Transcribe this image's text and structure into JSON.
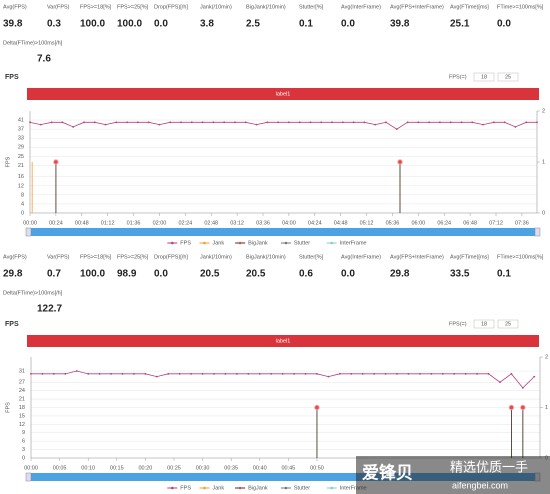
{
  "panels": [
    {
      "stats": [
        {
          "label": "Avg(FPS)",
          "value": "39.8"
        },
        {
          "label": "Var(FPS)",
          "value": "0.3"
        },
        {
          "label": "FPS>=18[%]",
          "value": "100.0"
        },
        {
          "label": "FPS>=25[%]",
          "value": "100.0"
        },
        {
          "label": "Drop(FPS)[/h]",
          "value": "0.0"
        },
        {
          "label": "Jank(/10min)",
          "value": "3.8"
        },
        {
          "label": "BigJank(/10min)",
          "value": "2.5"
        },
        {
          "label": "Stutter[%]",
          "value": "0.1"
        },
        {
          "label": "Avg(InterFrame)",
          "value": "0.0"
        },
        {
          "label": "Avg(FPS+InterFrame)",
          "value": "39.8"
        },
        {
          "label": "Avg(FTime)[ms]",
          "value": "25.1"
        },
        {
          "label": "FTime>=100ms[%]",
          "value": "0.0"
        }
      ],
      "delta": {
        "label": "Delta(FTime)>100ms[/h]",
        "value": "7.6"
      }
    },
    {
      "stats": [
        {
          "label": "Avg(FPS)",
          "value": "29.8"
        },
        {
          "label": "Var(FPS)",
          "value": "0.7"
        },
        {
          "label": "FPS>=18[%]",
          "value": "100.0"
        },
        {
          "label": "FPS>=25[%]",
          "value": "98.9"
        },
        {
          "label": "Drop(FPS)[/h]",
          "value": "0.0"
        },
        {
          "label": "Jank(/10min)",
          "value": "20.5"
        },
        {
          "label": "BigJank(/10min)",
          "value": "20.5"
        },
        {
          "label": "Stutter[%]",
          "value": "0.6"
        },
        {
          "label": "Avg(InterFrame)",
          "value": "0.0"
        },
        {
          "label": "Avg(FPS+InterFrame)",
          "value": "29.8"
        },
        {
          "label": "Avg(FTime)[ms]",
          "value": "33.5"
        },
        {
          "label": "FTime>=100ms[%]",
          "value": "0.1"
        }
      ],
      "delta": {
        "label": "Delta(FTime)>100ms[/h]",
        "value": "122.7"
      }
    }
  ],
  "chart_data": [
    {
      "type": "line",
      "title": "FPS",
      "ylabel": "FPS",
      "threshold_label": "FPS(=)",
      "thresholds": [
        18,
        25
      ],
      "band_label": "label1",
      "grid": true,
      "legend": "bottom",
      "xlim": [
        0,
        470
      ],
      "xticks": [
        {
          "value": 0,
          "label": "00:00"
        },
        {
          "value": 24,
          "label": "00:24"
        },
        {
          "value": 48,
          "label": "00:48"
        },
        {
          "value": 72,
          "label": "01:12"
        },
        {
          "value": 96,
          "label": "01:36"
        },
        {
          "value": 120,
          "label": "02:00"
        },
        {
          "value": 144,
          "label": "02:24"
        },
        {
          "value": 168,
          "label": "02:48"
        },
        {
          "value": 192,
          "label": "03:12"
        },
        {
          "value": 216,
          "label": "03:36"
        },
        {
          "value": 240,
          "label": "04:00"
        },
        {
          "value": 264,
          "label": "04:24"
        },
        {
          "value": 288,
          "label": "04:48"
        },
        {
          "value": 312,
          "label": "05:12"
        },
        {
          "value": 336,
          "label": "05:36"
        },
        {
          "value": 360,
          "label": "06:00"
        },
        {
          "value": 384,
          "label": "06:24"
        },
        {
          "value": 408,
          "label": "06:48"
        },
        {
          "value": 432,
          "label": "07:12"
        },
        {
          "value": 456,
          "label": "07:36"
        }
      ],
      "ylim": [
        0,
        45
      ],
      "yticks": [
        0,
        4,
        8,
        12,
        16,
        21,
        25,
        29,
        33,
        37,
        41
      ],
      "y2lim": [
        0,
        2
      ],
      "y2ticks": [
        0,
        1,
        2
      ],
      "series": [
        {
          "name": "FPS",
          "color": "#b8417a",
          "x": [
            0,
            10,
            20,
            30,
            40,
            50,
            60,
            70,
            80,
            90,
            100,
            110,
            120,
            130,
            140,
            150,
            160,
            170,
            180,
            190,
            200,
            210,
            220,
            230,
            240,
            250,
            260,
            270,
            280,
            290,
            300,
            310,
            320,
            330,
            340,
            350,
            360,
            370,
            380,
            390,
            400,
            410,
            420,
            430,
            440,
            450,
            460,
            470
          ],
          "values": [
            40,
            39,
            40,
            40,
            38,
            40,
            40,
            39,
            40,
            40,
            40,
            40,
            39,
            40,
            40,
            40,
            40,
            40,
            40,
            40,
            40,
            39,
            40,
            40,
            40,
            40,
            40,
            40,
            40,
            40,
            40,
            40,
            39,
            40,
            37,
            40,
            40,
            40,
            40,
            40,
            40,
            40,
            39,
            40,
            40,
            38,
            40,
            40
          ]
        },
        {
          "name": "Jank",
          "color": "#f0a030",
          "axis": "y2",
          "x": [
            2,
            24,
            343
          ],
          "values": [
            1,
            1,
            1
          ]
        },
        {
          "name": "BigJank",
          "color": "#333333",
          "marker": "#e8474c",
          "axis": "y2",
          "x": [
            24,
            343
          ],
          "values": [
            1,
            1
          ]
        },
        {
          "name": "Stutter",
          "color": "#777777",
          "axis": "y2",
          "x": [],
          "values": []
        },
        {
          "name": "InterFrame",
          "color": "#7fd0c0",
          "axis": "y2",
          "x": [],
          "values": []
        }
      ]
    },
    {
      "type": "line",
      "title": "FPS",
      "ylabel": "FPS",
      "threshold_label": "FPS(=)",
      "thresholds": [
        18,
        25
      ],
      "band_label": "label1",
      "grid": true,
      "legend": "bottom",
      "xlim": [
        0,
        89
      ],
      "xticks": [
        {
          "value": 0,
          "label": "00:00"
        },
        {
          "value": 5,
          "label": "00:05"
        },
        {
          "value": 10,
          "label": "00:10"
        },
        {
          "value": 15,
          "label": "00:15"
        },
        {
          "value": 20,
          "label": "00:20"
        },
        {
          "value": 25,
          "label": "00:25"
        },
        {
          "value": 30,
          "label": "00:30"
        },
        {
          "value": 35,
          "label": "00:35"
        },
        {
          "value": 40,
          "label": "00:40"
        },
        {
          "value": 45,
          "label": "00:45"
        },
        {
          "value": 50,
          "label": "00:50"
        }
      ],
      "ylim": [
        0,
        36
      ],
      "yticks": [
        0,
        3,
        6,
        9,
        12,
        15,
        18,
        21,
        24,
        27,
        31
      ],
      "y2lim": [
        0,
        2
      ],
      "y2ticks": [
        0,
        1,
        2
      ],
      "series": [
        {
          "name": "FPS",
          "color": "#b8417a",
          "x": [
            0,
            2,
            4,
            6,
            8,
            10,
            12,
            14,
            16,
            18,
            20,
            22,
            24,
            26,
            28,
            30,
            32,
            34,
            36,
            38,
            40,
            42,
            44,
            46,
            48,
            50,
            52,
            54,
            56,
            58,
            60,
            62,
            64,
            66,
            68,
            70,
            72,
            74,
            76,
            78,
            80,
            82,
            84,
            86,
            88
          ],
          "values": [
            30,
            30,
            30,
            30,
            31,
            30,
            30,
            30,
            30,
            30,
            30,
            29,
            30,
            30,
            30,
            30,
            30,
            30,
            30,
            30,
            30,
            30,
            30,
            30,
            30,
            30,
            29,
            30,
            30,
            30,
            30,
            30,
            30,
            30,
            30,
            30,
            30,
            30,
            30,
            30,
            30,
            27,
            30,
            25,
            29
          ]
        },
        {
          "name": "Jank",
          "color": "#f0a030",
          "axis": "y2",
          "x": [
            50,
            84,
            86
          ],
          "values": [
            1,
            1,
            1
          ]
        },
        {
          "name": "BigJank",
          "color": "#333333",
          "marker": "#e8474c",
          "axis": "y2",
          "x": [
            50,
            84,
            86
          ],
          "values": [
            1,
            1,
            1
          ]
        },
        {
          "name": "Stutter",
          "color": "#777777",
          "axis": "y2",
          "x": [],
          "values": []
        },
        {
          "name": "InterFrame",
          "color": "#7fd0c0",
          "axis": "y2",
          "x": [],
          "values": []
        }
      ]
    }
  ],
  "watermark": {
    "brand": "爱锋贝",
    "slogan": "精选优质一手",
    "url": "aifengbei.com"
  }
}
